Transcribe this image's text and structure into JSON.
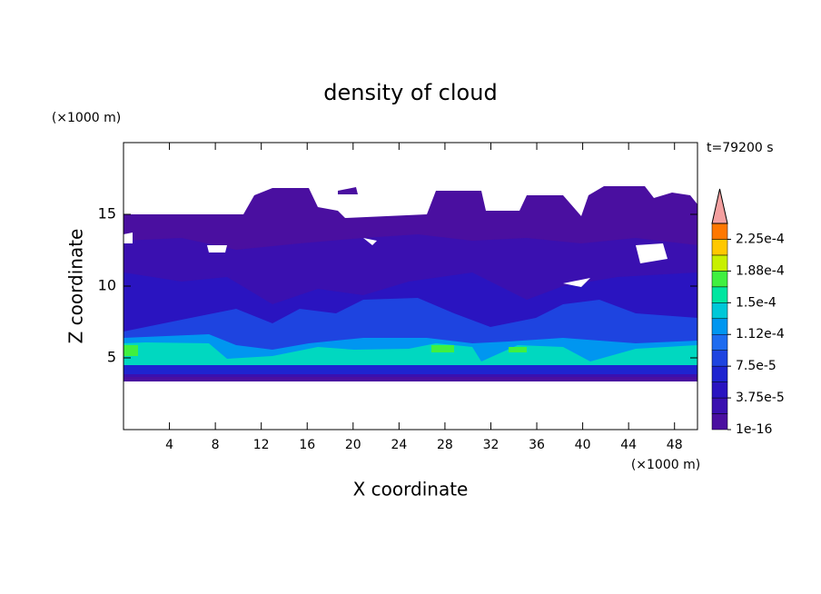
{
  "chart_data": {
    "type": "contour",
    "title": "density of cloud",
    "xlabel": "X coordinate",
    "ylabel": "Z coordinate",
    "x_unit": "(×1000 m)",
    "y_unit": "(×1000 m)",
    "time_label": "t=79200 s",
    "xlim": [
      0,
      50
    ],
    "xticks": [
      4,
      8,
      12,
      16,
      20,
      24,
      28,
      32,
      36,
      40,
      44,
      48
    ],
    "ylim": [
      0,
      20
    ],
    "yticks": [
      5,
      10,
      15
    ],
    "colorbar": {
      "clim": [
        0,
        0.00024375
      ],
      "colors": [
        "#4a0fa0",
        "#3a10b0",
        "#2a14c0",
        "#1e24d0",
        "#1e44e0",
        "#1e6cf0",
        "#0096f0",
        "#00c8d8",
        "#00e6a0",
        "#40f040",
        "#c8f000",
        "#ffc800",
        "#ff7800"
      ],
      "extend_color": "#f4a0a0",
      "ticks": [
        {
          "value": 1e-16,
          "label": "1e-16"
        },
        {
          "value": 3.75e-05,
          "label": "3.75e-5"
        },
        {
          "value": 7.5e-05,
          "label": "7.5e-5"
        },
        {
          "value": 0.0001125,
          "label": "1.12e-4"
        },
        {
          "value": 0.00015,
          "label": "1.5e-4"
        },
        {
          "value": 0.0001875,
          "label": "1.88e-4"
        },
        {
          "value": 0.000225,
          "label": "2.25e-4"
        }
      ]
    }
  }
}
